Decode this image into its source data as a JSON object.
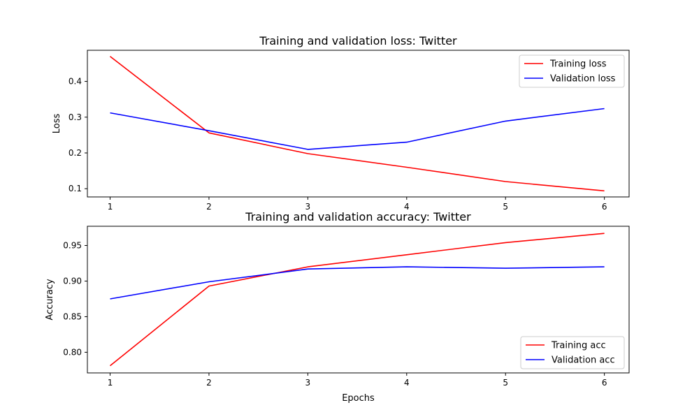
{
  "chart_data": [
    {
      "type": "line",
      "title": "Training and validation loss: Twitter",
      "xlabel": "",
      "ylabel": "Loss",
      "x": [
        1,
        2,
        3,
        4,
        5,
        6
      ],
      "xlim": [
        0.77,
        6.25
      ],
      "ylim": [
        0.077,
        0.487
      ],
      "xticks": [
        1,
        2,
        3,
        4,
        5,
        6
      ],
      "yticks": [
        0.1,
        0.2,
        0.3,
        0.4
      ],
      "ytick_labels": [
        "0.1",
        "0.2",
        "0.3",
        "0.4"
      ],
      "grid": false,
      "legend_position": "upper right",
      "series": [
        {
          "name": "Training loss",
          "color": "#ff0000",
          "values": [
            0.47,
            0.256,
            0.198,
            0.16,
            0.12,
            0.094
          ]
        },
        {
          "name": "Validation loss",
          "color": "#0000ff",
          "values": [
            0.312,
            0.262,
            0.21,
            0.23,
            0.289,
            0.324
          ]
        }
      ]
    },
    {
      "type": "line",
      "title": "Training and validation accuracy: Twitter",
      "xlabel": "Epochs",
      "ylabel": "Accuracy",
      "x": [
        1,
        2,
        3,
        4,
        5,
        6
      ],
      "xlim": [
        0.77,
        6.25
      ],
      "ylim": [
        0.771,
        0.977
      ],
      "xticks": [
        1,
        2,
        3,
        4,
        5,
        6
      ],
      "yticks": [
        0.8,
        0.85,
        0.9,
        0.95
      ],
      "ytick_labels": [
        "0.80",
        "0.85",
        "0.90",
        "0.95"
      ],
      "grid": false,
      "legend_position": "lower right",
      "series": [
        {
          "name": "Training acc",
          "color": "#ff0000",
          "values": [
            0.781,
            0.893,
            0.92,
            0.937,
            0.954,
            0.967
          ]
        },
        {
          "name": "Validation acc",
          "color": "#0000ff",
          "values": [
            0.875,
            0.899,
            0.917,
            0.92,
            0.918,
            0.92
          ]
        }
      ]
    }
  ]
}
